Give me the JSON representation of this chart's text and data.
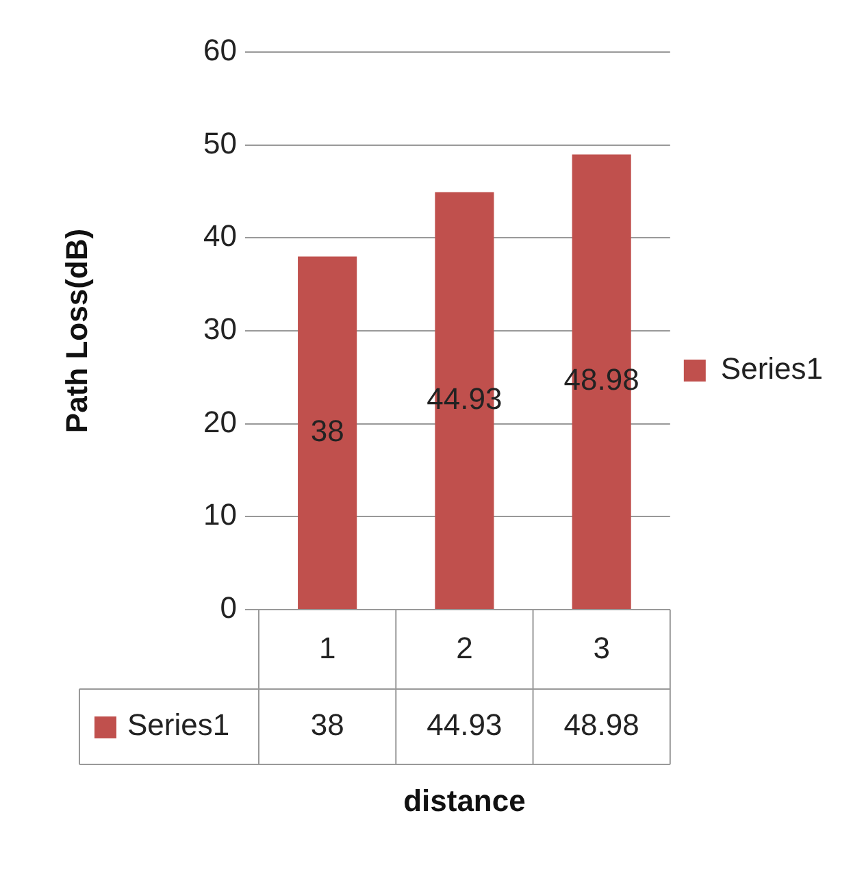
{
  "chart_data": {
    "type": "bar",
    "xlabel": "distance",
    "ylabel": "Path Loss(dB)",
    "categories": [
      "1",
      "2",
      "3"
    ],
    "series": [
      {
        "name": "Series1",
        "color": "#c0504d",
        "values": [
          38,
          44.93,
          48.98
        ],
        "value_labels": [
          "38",
          "44.93",
          "48.98"
        ]
      }
    ],
    "ylim": [
      0,
      60
    ],
    "yticks": [
      0,
      10,
      20,
      30,
      40,
      50,
      60
    ],
    "grid": "y",
    "legend": "right",
    "annotations": [
      "38",
      "44.93",
      "48.98"
    ]
  }
}
